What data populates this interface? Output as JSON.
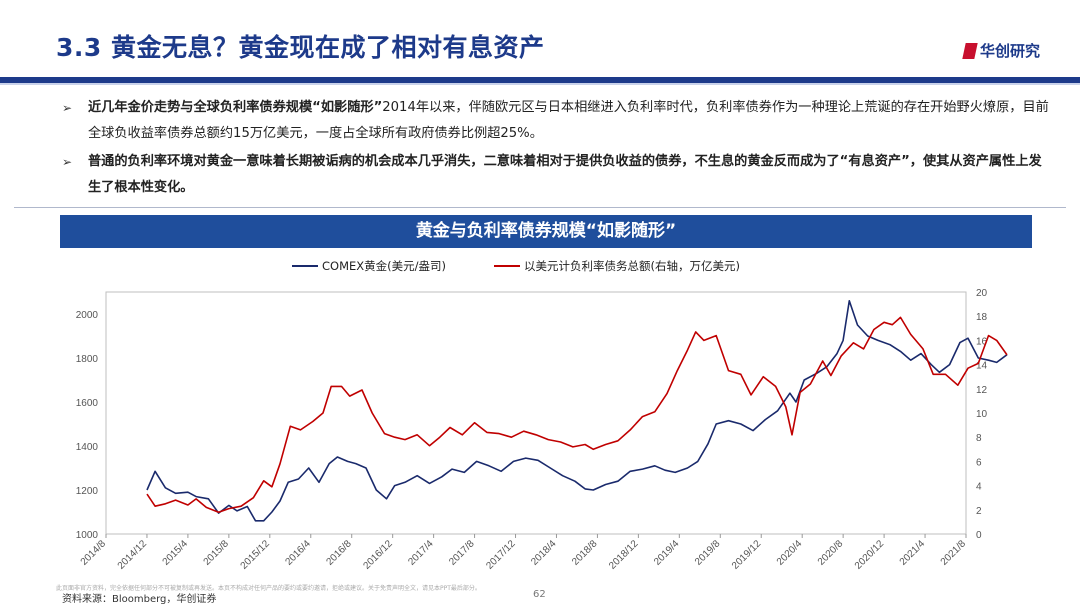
{
  "slide": {
    "title": "3.3 黄金无息？黄金现在成了相对有息资产",
    "brand": "华创研究",
    "bullets": [
      {
        "bold": "近几年金价走势与全球负利率债券规模“如影随形”",
        "text": "2014年以来，伴随欧元区与日本相继进入负利率时代，负利率债券作为一种理论上荒诞的存在开始野火燎原，目前全球负收益率债券总额约15万亿美元，一度占全球所有政府债券比例超25%。"
      },
      {
        "bold": "普通的负利率环境对黄金一意味着长期被诟病的机会成本几乎消失，二意味着相对于提供负收益的债券，不生息的黄金反而成为了“有息资产”，使其从资产属性上发生了根本性变化。",
        "text": ""
      }
    ],
    "source": "资料来源：Bloomberg，华创证券",
    "footer_note": "此页面非官方资料，完全依据任何部分不可被复制或再发送。本页不构成对任何产品的要约或要约邀请，拒绝或建议。关于免责声明全文，请见本PPT最后部分。",
    "page_number": "62"
  },
  "chart_data": {
    "type": "line",
    "title": "黄金与负利率债券规模“如影随形”",
    "legend_position": "top",
    "colors": {
      "gold": "#1a2a6c",
      "debt": "#c00000"
    },
    "x_ticks": [
      "2014/8",
      "2014/12",
      "2015/4",
      "2015/8",
      "2015/12",
      "2016/4",
      "2016/8",
      "2016/12",
      "2017/4",
      "2017/8",
      "2017/12",
      "2018/4",
      "2018/8",
      "2018/12",
      "2019/4",
      "2019/8",
      "2019/12",
      "2020/4",
      "2020/8",
      "2020/12",
      "2021/4",
      "2021/8"
    ],
    "y_left": {
      "min": 1000,
      "max": 2100,
      "ticks": [
        1000,
        1200,
        1400,
        1600,
        1800,
        2000
      ]
    },
    "y_right": {
      "min": 0,
      "max": 20,
      "ticks": [
        0,
        2,
        4,
        6,
        8,
        10,
        12,
        14,
        16,
        18,
        20
      ]
    },
    "series": [
      {
        "name": "COMEX黄金(美元/盎司)",
        "axis": "left",
        "points": [
          [
            1.0,
            1200
          ],
          [
            1.2,
            1285
          ],
          [
            1.45,
            1210
          ],
          [
            1.7,
            1185
          ],
          [
            2.0,
            1190
          ],
          [
            2.2,
            1170
          ],
          [
            2.5,
            1160
          ],
          [
            2.75,
            1095
          ],
          [
            3.0,
            1130
          ],
          [
            3.2,
            1105
          ],
          [
            3.45,
            1125
          ],
          [
            3.65,
            1060
          ],
          [
            3.85,
            1060
          ],
          [
            4.05,
            1100
          ],
          [
            4.25,
            1150
          ],
          [
            4.45,
            1235
          ],
          [
            4.7,
            1250
          ],
          [
            4.95,
            1300
          ],
          [
            5.2,
            1235
          ],
          [
            5.45,
            1320
          ],
          [
            5.65,
            1350
          ],
          [
            5.9,
            1330
          ],
          [
            6.1,
            1320
          ],
          [
            6.35,
            1300
          ],
          [
            6.6,
            1200
          ],
          [
            6.85,
            1160
          ],
          [
            7.05,
            1220
          ],
          [
            7.3,
            1235
          ],
          [
            7.6,
            1265
          ],
          [
            7.9,
            1230
          ],
          [
            8.2,
            1260
          ],
          [
            8.45,
            1295
          ],
          [
            8.75,
            1280
          ],
          [
            9.05,
            1330
          ],
          [
            9.35,
            1310
          ],
          [
            9.65,
            1285
          ],
          [
            9.95,
            1330
          ],
          [
            10.25,
            1345
          ],
          [
            10.55,
            1335
          ],
          [
            10.85,
            1300
          ],
          [
            11.15,
            1265
          ],
          [
            11.45,
            1240
          ],
          [
            11.7,
            1205
          ],
          [
            11.9,
            1200
          ],
          [
            12.2,
            1225
          ],
          [
            12.5,
            1240
          ],
          [
            12.8,
            1285
          ],
          [
            13.1,
            1295
          ],
          [
            13.4,
            1310
          ],
          [
            13.65,
            1290
          ],
          [
            13.9,
            1280
          ],
          [
            14.2,
            1300
          ],
          [
            14.45,
            1330
          ],
          [
            14.7,
            1410
          ],
          [
            14.9,
            1500
          ],
          [
            15.2,
            1515
          ],
          [
            15.5,
            1500
          ],
          [
            15.8,
            1470
          ],
          [
            16.1,
            1520
          ],
          [
            16.4,
            1560
          ],
          [
            16.7,
            1640
          ],
          [
            16.85,
            1600
          ],
          [
            17.05,
            1700
          ],
          [
            17.35,
            1730
          ],
          [
            17.6,
            1760
          ],
          [
            17.85,
            1820
          ],
          [
            18.0,
            1880
          ],
          [
            18.15,
            2060
          ],
          [
            18.35,
            1950
          ],
          [
            18.6,
            1900
          ],
          [
            18.85,
            1880
          ],
          [
            19.15,
            1860
          ],
          [
            19.4,
            1830
          ],
          [
            19.65,
            1790
          ],
          [
            19.9,
            1820
          ],
          [
            20.15,
            1770
          ],
          [
            20.35,
            1735
          ],
          [
            20.6,
            1770
          ],
          [
            20.85,
            1870
          ],
          [
            21.05,
            1890
          ],
          [
            21.3,
            1800
          ],
          [
            21.55,
            1790
          ],
          [
            21.75,
            1780
          ],
          [
            22.0,
            1815
          ]
        ]
      },
      {
        "name": "以美元计负利率债务总额(右轴，万亿美元)",
        "axis": "right",
        "points": [
          [
            1.0,
            3.3
          ],
          [
            1.2,
            2.3
          ],
          [
            1.45,
            2.5
          ],
          [
            1.7,
            2.8
          ],
          [
            2.0,
            2.4
          ],
          [
            2.2,
            2.9
          ],
          [
            2.45,
            2.2
          ],
          [
            2.75,
            1.8
          ],
          [
            3.0,
            2.1
          ],
          [
            3.3,
            2.3
          ],
          [
            3.6,
            3.0
          ],
          [
            3.85,
            4.4
          ],
          [
            4.05,
            3.9
          ],
          [
            4.25,
            5.8
          ],
          [
            4.5,
            8.9
          ],
          [
            4.75,
            8.6
          ],
          [
            5.05,
            9.3
          ],
          [
            5.3,
            10.0
          ],
          [
            5.5,
            12.2
          ],
          [
            5.75,
            12.2
          ],
          [
            5.95,
            11.4
          ],
          [
            6.25,
            11.9
          ],
          [
            6.5,
            10.0
          ],
          [
            6.8,
            8.3
          ],
          [
            7.05,
            8.0
          ],
          [
            7.3,
            7.8
          ],
          [
            7.6,
            8.2
          ],
          [
            7.9,
            7.3
          ],
          [
            8.15,
            8.0
          ],
          [
            8.4,
            8.8
          ],
          [
            8.7,
            8.2
          ],
          [
            9.0,
            9.2
          ],
          [
            9.3,
            8.4
          ],
          [
            9.6,
            8.3
          ],
          [
            9.9,
            8.0
          ],
          [
            10.2,
            8.5
          ],
          [
            10.5,
            8.2
          ],
          [
            10.8,
            7.8
          ],
          [
            11.1,
            7.6
          ],
          [
            11.4,
            7.2
          ],
          [
            11.7,
            7.4
          ],
          [
            11.9,
            7.0
          ],
          [
            12.2,
            7.4
          ],
          [
            12.5,
            7.7
          ],
          [
            12.8,
            8.6
          ],
          [
            13.1,
            9.7
          ],
          [
            13.4,
            10.1
          ],
          [
            13.7,
            11.6
          ],
          [
            13.95,
            13.5
          ],
          [
            14.2,
            15.2
          ],
          [
            14.4,
            16.7
          ],
          [
            14.6,
            16.0
          ],
          [
            14.9,
            16.4
          ],
          [
            15.2,
            13.5
          ],
          [
            15.5,
            13.2
          ],
          [
            15.75,
            11.5
          ],
          [
            16.05,
            13.0
          ],
          [
            16.35,
            12.2
          ],
          [
            16.6,
            10.5
          ],
          [
            16.75,
            8.2
          ],
          [
            16.95,
            11.7
          ],
          [
            17.2,
            12.4
          ],
          [
            17.5,
            14.3
          ],
          [
            17.7,
            13.1
          ],
          [
            17.95,
            14.7
          ],
          [
            18.25,
            15.8
          ],
          [
            18.5,
            15.3
          ],
          [
            18.75,
            16.9
          ],
          [
            19.0,
            17.5
          ],
          [
            19.2,
            17.3
          ],
          [
            19.4,
            17.9
          ],
          [
            19.65,
            16.5
          ],
          [
            19.95,
            15.3
          ],
          [
            20.2,
            13.2
          ],
          [
            20.5,
            13.2
          ],
          [
            20.8,
            12.3
          ],
          [
            21.05,
            13.7
          ],
          [
            21.3,
            14.1
          ],
          [
            21.55,
            16.4
          ],
          [
            21.75,
            16.0
          ],
          [
            22.0,
            14.8
          ]
        ]
      }
    ]
  }
}
